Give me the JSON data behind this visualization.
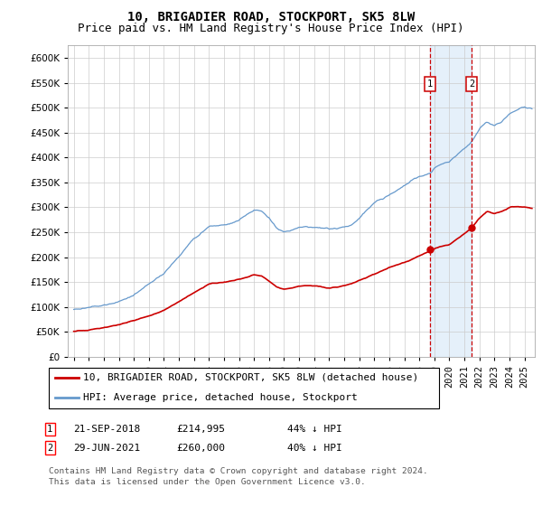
{
  "title": "10, BRIGADIER ROAD, STOCKPORT, SK5 8LW",
  "subtitle": "Price paid vs. HM Land Registry's House Price Index (HPI)",
  "ylim": [
    0,
    625000
  ],
  "yticks": [
    0,
    50000,
    100000,
    150000,
    200000,
    250000,
    300000,
    350000,
    400000,
    450000,
    500000,
    550000,
    600000
  ],
  "hpi_color": "#6699cc",
  "sale_color": "#cc0000",
  "vline_color": "#cc0000",
  "shade_color": "#d0e4f7",
  "transaction1_x": 2018.722,
  "transaction1_price": 214995,
  "transaction1_date": "21-SEP-2018",
  "transaction1_hpi_pct": "44% ↓ HPI",
  "transaction2_x": 2021.497,
  "transaction2_price": 260000,
  "transaction2_date": "29-JUN-2021",
  "transaction2_hpi_pct": "40% ↓ HPI",
  "legend_label1": "10, BRIGADIER ROAD, STOCKPORT, SK5 8LW (detached house)",
  "legend_label2": "HPI: Average price, detached house, Stockport",
  "footnote_line1": "Contains HM Land Registry data © Crown copyright and database right 2024.",
  "footnote_line2": "This data is licensed under the Open Government Licence v3.0.",
  "title_fontsize": 10,
  "subtitle_fontsize": 9,
  "tick_fontsize": 7.5,
  "legend_fontsize": 8,
  "table_fontsize": 8,
  "footnote_fontsize": 6.8,
  "background_color": "#ffffff",
  "grid_color": "#cccccc"
}
